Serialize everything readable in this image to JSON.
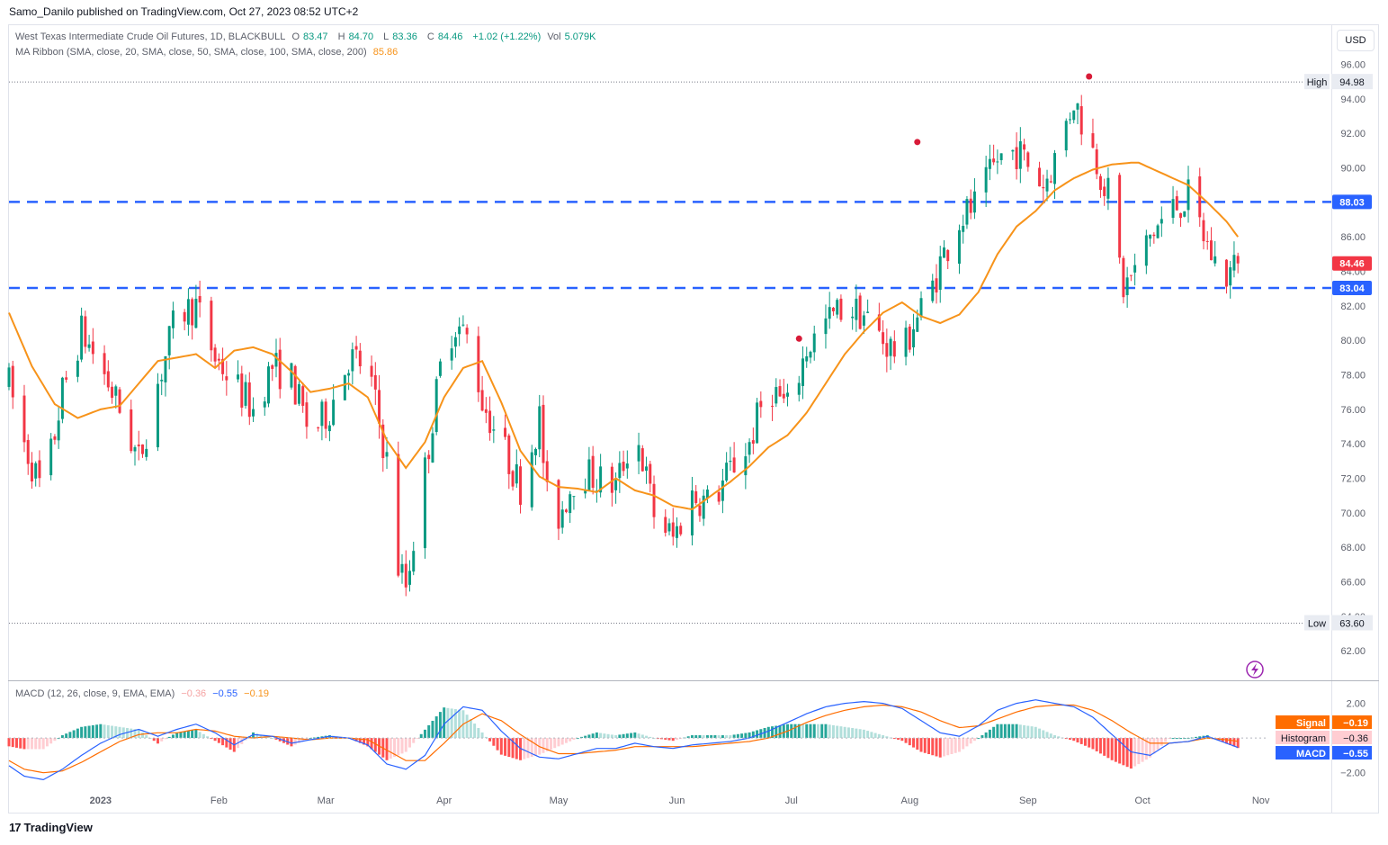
{
  "header": {
    "publisher_line": "Samo_Danilo published on TradingView.com, Oct 27, 2023 08:52 UTC+2"
  },
  "legend": {
    "symbol": "West Texas Intermediate Crude Oil Futures, 1D, BLACKBULL",
    "o_label": "O",
    "o_value": "83.47",
    "h_label": "H",
    "h_value": "84.70",
    "l_label": "L",
    "l_value": "83.36",
    "c_label": "C",
    "c_value": "84.46",
    "change": "+1.02 (+1.22%)",
    "vol_label": "Vol",
    "vol_value": "5.079K",
    "ma_label": "MA Ribbon (SMA, close, 20, SMA, close, 50, SMA, close, 100, SMA, close, 200)",
    "ma_value": "85.86",
    "macd_label": "MACD (12, 26, close, 9, EMA, EMA)",
    "macd_hist": "−0.36",
    "macd_macd": "−0.55",
    "macd_signal": "−0.19"
  },
  "currency_button": "USD",
  "footer": {
    "brand": "TradingView"
  },
  "colors": {
    "up": "#089981",
    "down": "#f23645",
    "ma": "#f7931a",
    "level": "#2962ff",
    "macd": "#2962ff",
    "signal": "#ff6d00",
    "hist_up_strong": "#26a69a",
    "hist_up_weak": "#b2dfdb",
    "hist_dn_strong": "#ff5252",
    "hist_dn_weak": "#ffcdd2",
    "marker": "#d81b38"
  },
  "chart_data": {
    "type": "candlestick",
    "price_axis": {
      "ylim": [
        60.6,
        96.5
      ],
      "ticks": [
        "96.00",
        "94.00",
        "92.00",
        "90.00",
        "88.00",
        "86.00",
        "84.00",
        "82.00",
        "80.00",
        "78.00",
        "76.00",
        "74.00",
        "72.00",
        "70.00",
        "68.00",
        "66.00",
        "64.00",
        "62.00"
      ]
    },
    "time_axis": {
      "labels": [
        "2023",
        "Feb",
        "Mar",
        "Apr",
        "May",
        "Jun",
        "Jul",
        "Aug",
        "Sep",
        "Oct",
        "Nov"
      ],
      "label_days": [
        0,
        31,
        59,
        90,
        120,
        151,
        181,
        212,
        243,
        273,
        304
      ],
      "xlim": [
        -24,
        322
      ]
    },
    "high_marker": {
      "label": "High",
      "value": 94.98
    },
    "low_marker": {
      "label": "Low",
      "value": 63.6
    },
    "levels": [
      {
        "label": "88.03",
        "value": 88.03
      },
      {
        "label": "83.04",
        "value": 83.04
      }
    ],
    "last_price": {
      "label": "84.46",
      "value": 84.46
    },
    "ma_anchor_points": {
      "day": [
        -24,
        -18,
        -12,
        -6,
        0,
        5,
        10,
        15,
        20,
        25,
        30,
        35,
        40,
        45,
        50,
        55,
        60,
        65,
        70,
        75,
        80,
        85,
        90,
        95,
        100,
        105,
        110,
        115,
        120,
        125,
        130,
        135,
        140,
        145,
        150,
        155,
        160,
        165,
        170,
        175,
        180,
        185,
        190,
        195,
        200,
        205,
        210,
        215,
        220,
        225,
        230,
        235,
        240,
        245,
        250,
        255,
        260,
        265,
        270,
        272,
        275,
        280,
        285,
        290,
        295,
        298
      ],
      "value": [
        81.6,
        78.5,
        76.3,
        75.5,
        76.0,
        76.2,
        77.5,
        78.8,
        79.0,
        79.2,
        78.4,
        79.4,
        79.6,
        79.2,
        78.2,
        77.0,
        77.2,
        77.5,
        76.7,
        74.2,
        72.6,
        74.1,
        76.7,
        78.4,
        78.8,
        76.4,
        73.6,
        72.1,
        71.5,
        71.4,
        71.2,
        72.0,
        71.3,
        71.0,
        70.4,
        70.2,
        71.0,
        71.8,
        72.7,
        73.8,
        74.5,
        75.8,
        77.5,
        79.2,
        80.5,
        81.6,
        82.2,
        81.4,
        81.0,
        81.5,
        82.8,
        85.0,
        86.6,
        87.5,
        88.7,
        89.4,
        89.9,
        90.2,
        90.3,
        90.3,
        90.0,
        89.5,
        89.0,
        88.0,
        86.9,
        86.0
      ]
    },
    "candles_note": "daily OHLC path anchored to visible swings",
    "price_path_anchors": {
      "day": [
        -24,
        -20,
        -15,
        -10,
        -5,
        0,
        5,
        10,
        15,
        20,
        25,
        30,
        35,
        40,
        45,
        50,
        55,
        60,
        65,
        70,
        75,
        77,
        80,
        85,
        90,
        93,
        97,
        100,
        105,
        110,
        115,
        118,
        120,
        125,
        130,
        135,
        140,
        145,
        150,
        155,
        160,
        165,
        170,
        175,
        180,
        185,
        190,
        195,
        200,
        205,
        210,
        213,
        217,
        220,
        225,
        230,
        235,
        240,
        244,
        247,
        250,
        255,
        260,
        264,
        268,
        271,
        275,
        280,
        285,
        290,
        294,
        298
      ],
      "close": [
        77.5,
        74.0,
        71.0,
        77.0,
        80.5,
        78.5,
        76.0,
        73.0,
        77.5,
        81.5,
        82.0,
        79.0,
        77.5,
        76.0,
        78.5,
        77.8,
        74.5,
        76.0,
        79.0,
        78.5,
        73.0,
        67.5,
        65.8,
        72.5,
        79.8,
        81.0,
        79.8,
        76.5,
        74.0,
        71.5,
        75.5,
        68.4,
        69.8,
        72.5,
        72.0,
        71.5,
        75.0,
        70.0,
        68.5,
        71.0,
        70.5,
        72.5,
        74.0,
        77.5,
        76.0,
        79.5,
        81.0,
        82.0,
        81.5,
        80.0,
        79.0,
        81.0,
        82.5,
        84.5,
        87.0,
        88.0,
        90.5,
        91.0,
        90.0,
        89.0,
        90.5,
        94.0,
        91.0,
        88.5,
        83.0,
        84.0,
        86.0,
        87.5,
        88.3,
        85.5,
        83.5,
        84.46
      ]
    },
    "macd_axis": {
      "ticks": [
        "2.00",
        "−2.00"
      ]
    },
    "macd_path_anchors": {
      "day": [
        -24,
        -20,
        -15,
        -10,
        -5,
        0,
        5,
        10,
        15,
        20,
        25,
        30,
        35,
        40,
        45,
        50,
        55,
        60,
        65,
        70,
        75,
        80,
        85,
        90,
        95,
        100,
        105,
        110,
        115,
        120,
        125,
        130,
        135,
        140,
        145,
        150,
        155,
        160,
        165,
        170,
        175,
        180,
        185,
        190,
        195,
        200,
        205,
        210,
        215,
        220,
        225,
        230,
        235,
        240,
        245,
        250,
        255,
        260,
        265,
        270,
        275,
        280,
        285,
        290,
        295,
        298
      ],
      "macd": [
        -1.6,
        -2.2,
        -2.4,
        -1.8,
        -1.0,
        -0.3,
        0.2,
        0.5,
        0.1,
        0.5,
        0.8,
        0.3,
        -0.4,
        0.2,
        0.1,
        -0.3,
        -0.1,
        0.1,
        0.0,
        -0.4,
        -1.5,
        -1.8,
        -1.0,
        0.8,
        1.8,
        1.6,
        0.4,
        -0.6,
        -1.1,
        -1.2,
        -0.9,
        -0.6,
        -0.6,
        -0.3,
        -0.5,
        -0.6,
        -0.4,
        -0.3,
        -0.2,
        0.0,
        0.4,
        0.9,
        1.4,
        1.8,
        2.0,
        2.1,
        2.0,
        1.7,
        1.0,
        0.3,
        0.1,
        0.7,
        1.6,
        2.0,
        2.2,
        2.0,
        1.8,
        1.2,
        0.2,
        -0.8,
        -1.0,
        -0.3,
        -0.2,
        0.1,
        -0.3,
        -0.55
      ],
      "signal": [
        -1.3,
        -1.8,
        -2.0,
        -1.9,
        -1.4,
        -0.8,
        -0.2,
        0.2,
        0.3,
        0.3,
        0.5,
        0.4,
        0.1,
        0.0,
        0.1,
        0.0,
        -0.1,
        0.0,
        0.0,
        -0.1,
        -0.7,
        -1.3,
        -1.3,
        -0.3,
        0.8,
        1.4,
        1.0,
        0.2,
        -0.5,
        -0.9,
        -0.9,
        -0.8,
        -0.7,
        -0.5,
        -0.5,
        -0.5,
        -0.5,
        -0.4,
        -0.3,
        -0.2,
        0.0,
        0.4,
        0.9,
        1.3,
        1.6,
        1.8,
        1.9,
        1.8,
        1.5,
        1.0,
        0.6,
        0.7,
        1.1,
        1.5,
        1.8,
        1.9,
        1.9,
        1.6,
        1.0,
        0.3,
        -0.3,
        -0.3,
        -0.2,
        0.0,
        -0.1,
        -0.19
      ]
    },
    "macd_labels": [
      {
        "name": "Signal",
        "value": "−0.19"
      },
      {
        "name": "Histogram",
        "value": "−0.36"
      },
      {
        "name": "MACD",
        "value": "−0.55"
      }
    ]
  }
}
